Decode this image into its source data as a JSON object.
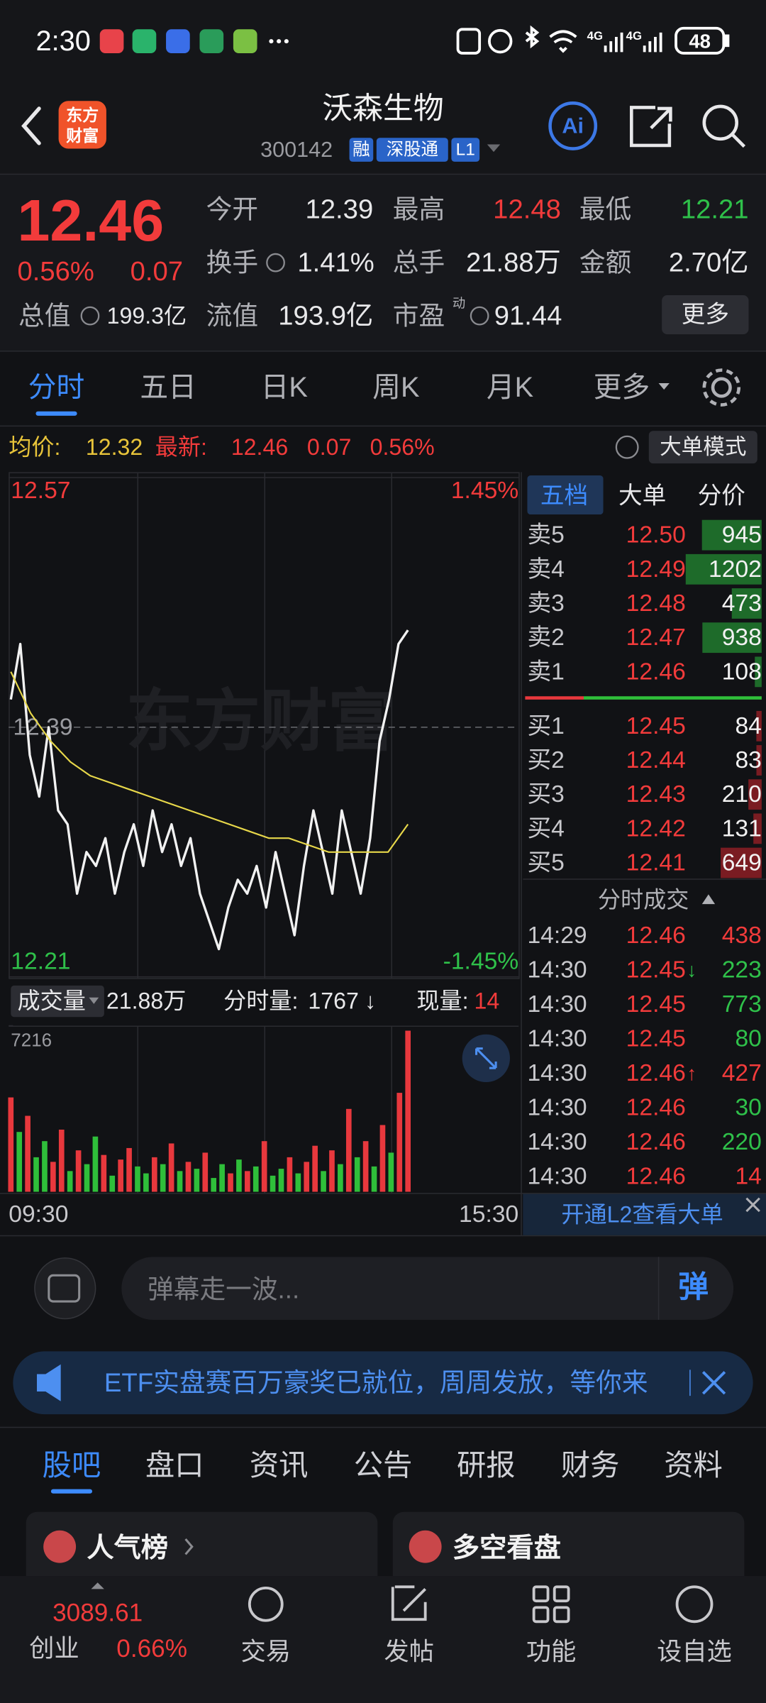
{
  "status_bar": {
    "time": "2:30",
    "battery": "48"
  },
  "header": {
    "logo": [
      "东方",
      "财富"
    ],
    "title": "沃森生物",
    "code": "300142",
    "badges": [
      "融",
      "深股通",
      "L1"
    ],
    "ai": "Ai"
  },
  "quote": {
    "price": "12.46",
    "change_pct": "0.56%",
    "change": "0.07",
    "fields": [
      {
        "label": "今开",
        "value": "12.39"
      },
      {
        "label": "最高",
        "value": "12.48"
      },
      {
        "label": "最低",
        "value": "12.21"
      },
      {
        "label": "换手",
        "value": "1.41%"
      },
      {
        "label": "总手",
        "value": "21.88万"
      },
      {
        "label": "金额",
        "value": "2.70亿"
      },
      {
        "label": "总值",
        "value": "199.3亿"
      },
      {
        "label": "流值",
        "value": "193.9亿"
      },
      {
        "label": "市盈",
        "sup": "动",
        "value": "91.44"
      }
    ],
    "more": "更多"
  },
  "tabs": [
    "分时",
    "五日",
    "日K",
    "周K",
    "月K",
    "更多"
  ],
  "info_bar": {
    "avg_label": "均价:",
    "avg": "12.32",
    "latest_label": "最新:",
    "latest": "12.46",
    "change": "0.07",
    "pct": "0.56%",
    "mode": "大单模式"
  },
  "watermark": "东方财富",
  "chart_data": [
    {
      "type": "line",
      "series": [
        {
          "color": "#f2f2f2",
          "values": [
            12.41,
            12.45,
            12.37,
            12.34,
            12.39,
            12.33,
            12.32,
            12.27,
            12.3,
            12.29,
            12.31,
            12.27,
            12.3,
            12.32,
            12.29,
            12.33,
            12.3,
            12.32,
            12.29,
            12.31,
            12.27,
            12.25,
            12.23,
            12.26,
            12.28,
            12.27,
            12.29,
            12.26,
            12.3,
            12.27,
            12.24,
            12.29,
            12.33,
            12.3,
            12.27,
            12.33,
            12.3,
            12.27,
            12.31,
            12.38,
            12.41,
            12.45,
            12.46
          ]
        },
        {
          "color": "#e8d84a",
          "values": [
            12.43,
            12.4,
            12.38,
            12.365,
            12.355,
            12.35,
            12.345,
            12.34,
            12.335,
            12.33,
            12.325,
            12.32,
            12.315,
            12.31,
            12.31,
            12.305,
            12.3,
            12.3,
            12.3,
            12.3,
            12.32
          ]
        }
      ],
      "ylim": [
        12.21,
        12.57
      ],
      "yticks": [
        12.21,
        12.39,
        12.57
      ],
      "y2lim": [
        -1.45,
        1.45
      ],
      "y2ticks": [
        {
          "value": -1.45,
          "label": "-1.45%"
        },
        {
          "value": 1.45,
          "label": "1.45%"
        }
      ],
      "grid": true
    },
    {
      "type": "bar",
      "values": [
        4100,
        2600,
        3300,
        1500,
        2200,
        1300,
        2700,
        900,
        1800,
        1200,
        2400,
        1600,
        700,
        1400,
        1900,
        1100,
        800,
        1500,
        1200,
        2100,
        900,
        1300,
        1000,
        1700,
        600,
        1200,
        800,
        1400,
        900,
        1100,
        2200,
        700,
        1000,
        1500,
        800,
        1300,
        2000,
        900,
        1800,
        1200,
        3600,
        1500,
        2200,
        1100,
        2900,
        1700,
        4300,
        7000
      ],
      "colors": [
        "#e8383d",
        "#2fbf3a",
        "#e8383d",
        "#2fbf3a",
        "#2fbf3a",
        "#e8383d",
        "#e8383d",
        "#2fbf3a",
        "#e8383d",
        "#2fbf3a",
        "#2fbf3a",
        "#e8383d",
        "#2fbf3a",
        "#e8383d",
        "#e8383d",
        "#2fbf3a",
        "#2fbf3a",
        "#e8383d",
        "#2fbf3a",
        "#e8383d",
        "#2fbf3a",
        "#e8383d",
        "#2fbf3a",
        "#e8383d",
        "#2fbf3a",
        "#2fbf3a",
        "#e8383d",
        "#2fbf3a",
        "#e8383d",
        "#2fbf3a",
        "#e8383d",
        "#2fbf3a",
        "#2fbf3a",
        "#e8383d",
        "#2fbf3a",
        "#e8383d",
        "#e8383d",
        "#2fbf3a",
        "#e8383d",
        "#2fbf3a",
        "#e8383d",
        "#2fbf3a",
        "#e8383d",
        "#2fbf3a",
        "#e8383d",
        "#2fbf3a",
        "#e8383d",
        "#e8383d"
      ],
      "ylim": [
        0,
        7216
      ],
      "yticks": [
        7216
      ],
      "x_labels": [
        "09:30",
        "15:30"
      ]
    }
  ],
  "volume_header": {
    "label": "成交量",
    "total": "21.88万",
    "tick_label": "分时量:",
    "tick": "1767",
    "tick_arrow": "↓",
    "current_label": "现量:",
    "current": "14"
  },
  "order_book": {
    "tabs": [
      "五档",
      "大单",
      "分价"
    ],
    "sell": [
      {
        "label": "卖5",
        "price": "12.50",
        "volume": 945
      },
      {
        "label": "卖4",
        "price": "12.49",
        "volume": 1202
      },
      {
        "label": "卖3",
        "price": "12.48",
        "volume": 473
      },
      {
        "label": "卖2",
        "price": "12.47",
        "volume": 938
      },
      {
        "label": "卖1",
        "price": "12.46",
        "volume": 108
      }
    ],
    "buy": [
      {
        "label": "买1",
        "price": "12.45",
        "volume": 84
      },
      {
        "label": "买2",
        "price": "12.44",
        "volume": 83
      },
      {
        "label": "买3",
        "price": "12.43",
        "volume": 210
      },
      {
        "label": "买4",
        "price": "12.42",
        "volume": 131
      },
      {
        "label": "买5",
        "price": "12.41",
        "volume": 649
      }
    ]
  },
  "trades": {
    "title": "分时成交",
    "rows": [
      {
        "time": "14:29",
        "price": "12.46",
        "volume": 438,
        "color": "#f23b3b"
      },
      {
        "time": "14:30",
        "price": "12.45",
        "arrow": "↓",
        "volume": 223,
        "color": "#2fc14a"
      },
      {
        "time": "14:30",
        "price": "12.45",
        "volume": 773,
        "color": "#2fc14a"
      },
      {
        "time": "14:30",
        "price": "12.45",
        "volume": 80,
        "color": "#2fc14a"
      },
      {
        "time": "14:30",
        "price": "12.46",
        "arrow": "↑",
        "volume": 427,
        "color": "#f23b3b"
      },
      {
        "time": "14:30",
        "price": "12.46",
        "volume": 30,
        "color": "#2fc14a"
      },
      {
        "time": "14:30",
        "price": "12.46",
        "volume": 220,
        "color": "#2fc14a"
      },
      {
        "time": "14:30",
        "price": "12.46",
        "volume": 14,
        "color": "#f23b3b"
      }
    ],
    "l2_banner": "开通L2查看大单"
  },
  "comment_input": {
    "placeholder": "弹幕走一波...",
    "button": "弹"
  },
  "promo_banner": "ETF实盘赛百万豪奖已就位，周周发放，等你来",
  "section_tabs": [
    "股吧",
    "盘口",
    "资讯",
    "公告",
    "研报",
    "财务",
    "资料"
  ],
  "cards": [
    "人气榜",
    "多空看盘"
  ],
  "bottom_nav": {
    "index_value": "3089.61",
    "index_name": "创业",
    "index_pct": "0.66%",
    "items": [
      "交易",
      "发帖",
      "功能",
      "设自选"
    ]
  }
}
